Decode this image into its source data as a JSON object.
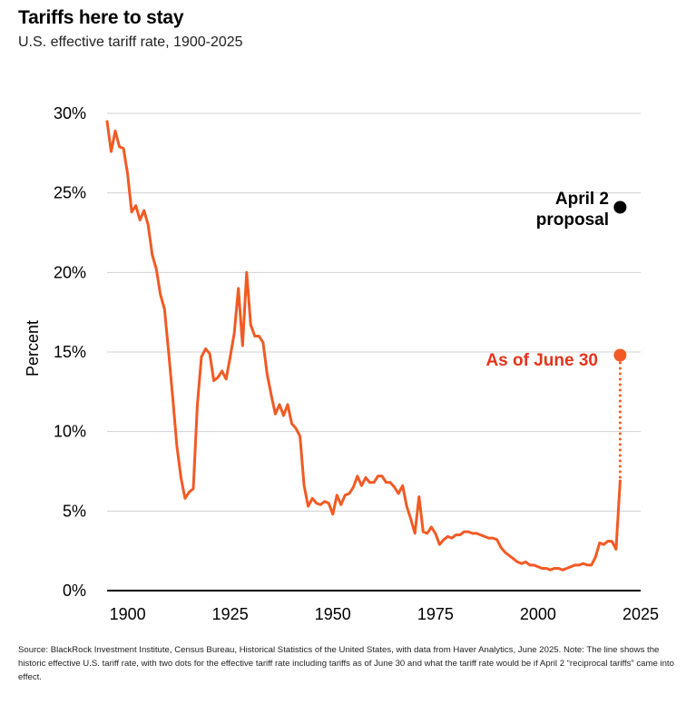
{
  "title": "Tariffs here to stay",
  "subtitle": "U.S. effective tariff rate, 1900-2025",
  "source": "Source: BlackRock Investment Institute, Census Bureau, Historical Statistics of the United States, with data from Haver Analytics, June 2025. Note: The line shows the historic effective U.S. tariff rate, with two dots for the effective tariff rate including tariffs as of June 30 and what the tariff rate would be if April 2 “reciprocal tariffs” came into effect.",
  "colors": {
    "line": "#f15a24",
    "dot_june": "#f15a24",
    "dot_april": "#000000",
    "label_june": "#e3341c",
    "grid": "#d0d0d0",
    "axis": "#000000"
  },
  "chart_data": {
    "type": "line",
    "ylabel": "Percent",
    "xlim": [
      1895,
      2025
    ],
    "ylim": [
      0,
      30
    ],
    "x_ticks": [
      1900,
      1925,
      1950,
      1975,
      2000,
      2025
    ],
    "y_ticks": [
      {
        "value": 0,
        "label": "0%"
      },
      {
        "value": 5,
        "label": "5%"
      },
      {
        "value": 10,
        "label": "10%"
      },
      {
        "value": 15,
        "label": "15%"
      },
      {
        "value": 20,
        "label": "20%"
      },
      {
        "value": 25,
        "label": "25%"
      },
      {
        "value": 30,
        "label": "30%"
      }
    ],
    "grid": "horizontal",
    "series": [
      {
        "x": [
          1895,
          1896,
          1897,
          1898,
          1899,
          1900,
          1901,
          1902,
          1903,
          1904,
          1905,
          1906,
          1907,
          1908,
          1909,
          1910,
          1911,
          1912,
          1913,
          1914,
          1915,
          1916,
          1917,
          1918,
          1919,
          1920,
          1921,
          1922,
          1923,
          1924,
          1925,
          1926,
          1927,
          1928,
          1929,
          1930,
          1931,
          1932,
          1933,
          1934,
          1935,
          1936,
          1937,
          1938,
          1939,
          1940,
          1941,
          1942,
          1943,
          1944,
          1945,
          1946,
          1947,
          1948,
          1949,
          1950,
          1951,
          1952,
          1953,
          1954,
          1955,
          1956,
          1957,
          1958,
          1959,
          1960,
          1961,
          1962,
          1963,
          1964,
          1965,
          1966,
          1967,
          1968,
          1969,
          1970,
          1971,
          1972,
          1973,
          1974,
          1975,
          1976,
          1977,
          1978,
          1979,
          1980,
          1981,
          1982,
          1983,
          1984,
          1985,
          1986,
          1987,
          1988,
          1989,
          1990,
          1991,
          1992,
          1993,
          1994,
          1995,
          1996,
          1997,
          1998,
          1999,
          2000,
          2001,
          2002,
          2003,
          2004,
          2005,
          2006,
          2007,
          2008,
          2009,
          2010,
          2011,
          2012,
          2013,
          2014,
          2015,
          2016,
          2017,
          2018,
          2019,
          2020
        ],
        "y": [
          29.5,
          27.6,
          28.9,
          27.9,
          27.8,
          26.2,
          23.8,
          24.2,
          23.3,
          23.9,
          23.0,
          21.1,
          20.2,
          18.6,
          17.7,
          15.0,
          12.1,
          9.1,
          7.1,
          5.8,
          6.2,
          6.4,
          11.7,
          14.7,
          15.2,
          14.9,
          13.2,
          13.4,
          13.8,
          13.3,
          14.7,
          16.2,
          19.0,
          15.4,
          20.0,
          16.7,
          16.0,
          16.0,
          15.6,
          13.6,
          12.3,
          11.1,
          11.7,
          11.0,
          11.7,
          10.5,
          10.2,
          9.7,
          6.6,
          5.3,
          5.8,
          5.5,
          5.4,
          5.6,
          5.5,
          4.8,
          6.0,
          5.4,
          6.0,
          6.1,
          6.5,
          7.2,
          6.6,
          7.1,
          6.8,
          6.8,
          7.2,
          7.2,
          6.8,
          6.8,
          6.5,
          6.1,
          6.6,
          5.3,
          4.5,
          3.6,
          5.9,
          3.7,
          3.6,
          4.0,
          3.6,
          2.9,
          3.2,
          3.4,
          3.3,
          3.5,
          3.5,
          3.7,
          3.7,
          3.6,
          3.6,
          3.5,
          3.4,
          3.3,
          3.3,
          3.2,
          2.7,
          2.4,
          2.2,
          2.0,
          1.8,
          1.7,
          1.8,
          1.6,
          1.6,
          1.5,
          1.4,
          1.4,
          1.3,
          1.4,
          1.4,
          1.3,
          1.4,
          1.5,
          1.6,
          1.6,
          1.7,
          1.6,
          1.6,
          2.1,
          3.0,
          2.9,
          3.1,
          3.1,
          2.6,
          6.9
        ]
      }
    ],
    "connector": {
      "x": 2020,
      "y_from": 6.9,
      "y_to": 14.8,
      "style": "dotted"
    },
    "points": [
      {
        "name": "As of June 30",
        "x": 2020,
        "y": 14.8
      },
      {
        "name": "April 2 proposal",
        "x": 2020,
        "y": 24.1
      }
    ],
    "annotations": {
      "june_label": "As of June 30",
      "april_label_line1": "April 2",
      "april_label_line2": "proposal"
    }
  }
}
